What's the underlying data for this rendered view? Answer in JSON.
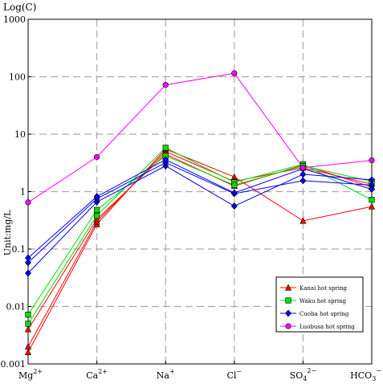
{
  "chart_data": {
    "type": "line",
    "y_scale": "log",
    "ylim": [
      0.001,
      1000
    ],
    "y_ticks": [
      {
        "value": 1000,
        "label": "1000"
      },
      {
        "value": 100,
        "label": "100"
      },
      {
        "value": 10,
        "label": "10"
      },
      {
        "value": 1,
        "label": "1"
      },
      {
        "value": 0.1,
        "label": "0.1"
      },
      {
        "value": 0.01,
        "label": "0.01"
      },
      {
        "value": 0.001,
        "label": "0.001"
      }
    ],
    "categories": [
      {
        "base": "Mg",
        "sup": "2+"
      },
      {
        "base": "Ca",
        "sup": "2+"
      },
      {
        "base": "Na",
        "sup": "+"
      },
      {
        "base": "Cl",
        "sup": "−"
      },
      {
        "base": "SO",
        "sub": "4",
        "sup": "2−"
      },
      {
        "base": "HCO",
        "sub": "3",
        "sup": "−"
      }
    ],
    "title": "Log(C)",
    "ylabel": "Unit:mg/L",
    "grid": true,
    "legend_position": "lower-right",
    "groups": [
      {
        "name": "Kanai hot spring",
        "color": "#ff0000",
        "marker": "triangle",
        "lines": [
          [
            0.0016,
            0.27,
            5.5,
            1.8,
            0.31,
            0.55
          ],
          [
            0.002,
            0.3,
            5.0,
            1.5,
            2.6,
            1.35
          ],
          [
            0.004,
            0.33,
            4.5,
            1.25,
            2.9,
            1.2
          ]
        ]
      },
      {
        "name": "Waku hot spring",
        "color": "#00dd00",
        "marker": "square",
        "lines": [
          [
            0.005,
            0.38,
            5.8,
            1.45,
            3.0,
            0.72
          ],
          [
            0.0072,
            0.48,
            4.2,
            1.3,
            2.8,
            1.5
          ]
        ]
      },
      {
        "name": "Cuoba hot spring",
        "color": "#0000ff",
        "marker": "diamond",
        "lines": [
          [
            0.038,
            0.66,
            2.8,
            0.56,
            2.0,
            1.6
          ],
          [
            0.058,
            0.75,
            3.2,
            0.92,
            1.55,
            1.3
          ],
          [
            0.07,
            0.82,
            3.6,
            0.95,
            2.5,
            1.1
          ]
        ]
      },
      {
        "name": "Luobusa hot spring",
        "color": "#ff00ff",
        "marker": "circle",
        "lines": [
          [
            0.65,
            4.0,
            72,
            115,
            2.6,
            3.5
          ]
        ]
      }
    ]
  }
}
